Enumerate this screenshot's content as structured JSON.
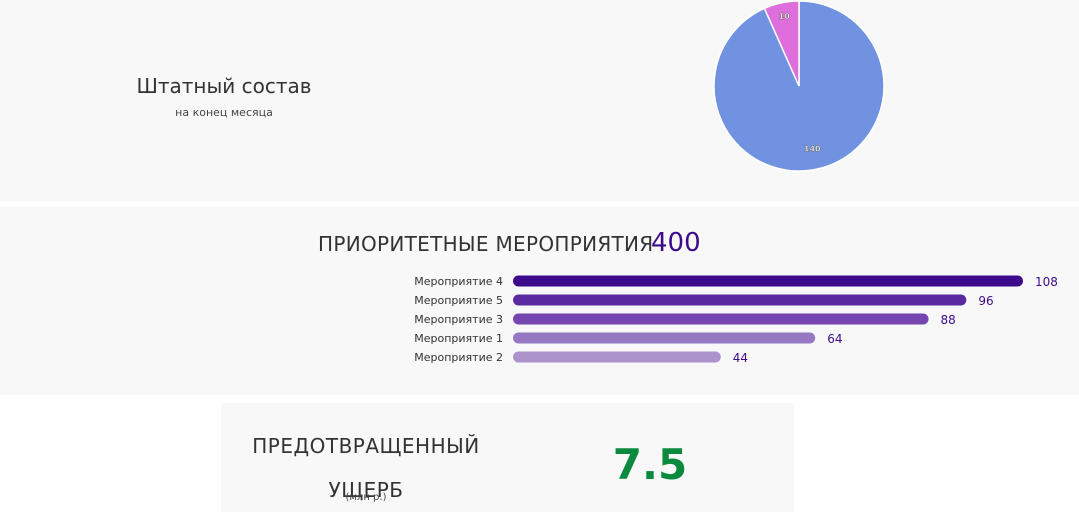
{
  "staff": {
    "title": "Штатный состав",
    "subtitle": "на конец месяца"
  },
  "priority": {
    "title": "ПРИОРИТЕТНЫЕ МЕРОПРИЯТИЯ",
    "total": "400"
  },
  "damage": {
    "title_line1": "ПРЕДОТВРАЩЕННЫЙ",
    "title_line2": "УЩЕРБ",
    "units": "(млн р.)",
    "value": "7.5",
    "value_color": "#0b8a3e"
  },
  "chart_data": [
    {
      "type": "pie",
      "slices": [
        {
          "label": "140",
          "value": 140,
          "color": "#7092e0"
        },
        {
          "label": "10",
          "value": 10,
          "color": "#de6edb"
        }
      ]
    },
    {
      "type": "bar",
      "orientation": "horizontal",
      "categories": [
        "Мероприятие 4",
        "Мероприятие 5",
        "Мероприятие 3",
        "Мероприятие 1",
        "Мероприятие 2"
      ],
      "values": [
        108,
        96,
        88,
        64,
        44
      ],
      "colors": [
        "#3d0a8c",
        "#5b2aa0",
        "#7545b0",
        "#9577c2",
        "#ad93cc"
      ],
      "value_label_color": "#3d0a8c"
    }
  ]
}
